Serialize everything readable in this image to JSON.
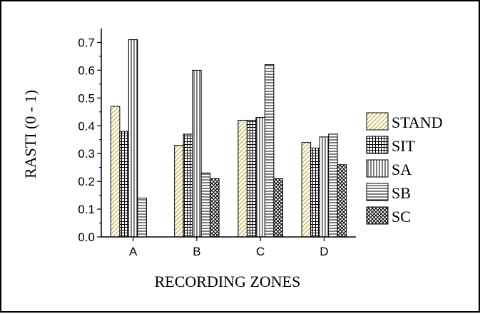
{
  "chart_data": {
    "type": "bar",
    "title": "",
    "xlabel": "RECORDING ZONES",
    "ylabel": "RASTI (0 - 1)",
    "categories": [
      "A",
      "B",
      "C",
      "D"
    ],
    "ylim": [
      0,
      0.75
    ],
    "yticks": [
      0.0,
      0.1,
      0.2,
      0.3,
      0.4,
      0.5,
      0.6,
      0.7
    ],
    "ytick_labels": [
      "0.0",
      "0.1",
      "0.2",
      "0.3",
      "0.4",
      "0.5",
      "0.6",
      "0.7"
    ],
    "legend_position": "right",
    "grid": false,
    "series": [
      {
        "name": "STAND",
        "values": [
          0.47,
          0.33,
          0.42,
          0.34
        ],
        "pattern": "diagonal",
        "color": "#c8b85a"
      },
      {
        "name": "SIT",
        "values": [
          0.38,
          0.37,
          0.42,
          0.32
        ],
        "pattern": "grid",
        "color": "#000000"
      },
      {
        "name": "SA",
        "values": [
          0.71,
          0.6,
          0.43,
          0.36
        ],
        "pattern": "vertical",
        "color": "#000000"
      },
      {
        "name": "SB",
        "values": [
          0.14,
          0.23,
          0.62,
          0.37
        ],
        "pattern": "horizontal",
        "color": "#000000"
      },
      {
        "name": "SC",
        "values": [
          0.0,
          0.21,
          0.21,
          0.26
        ],
        "pattern": "crosshatch",
        "color": "#000000"
      }
    ]
  }
}
